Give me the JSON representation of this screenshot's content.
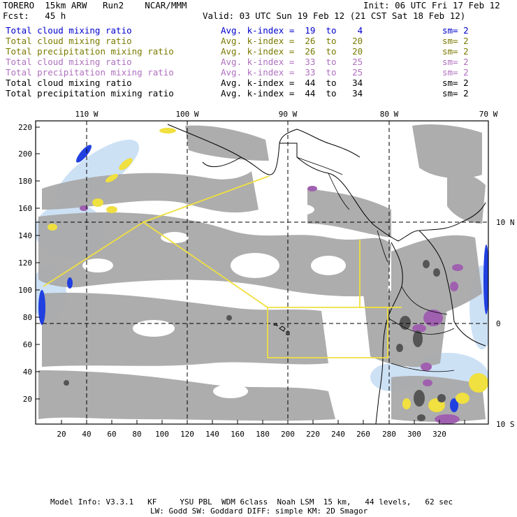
{
  "header": {
    "model": "TORERO  15km ARW   Run2    NCAR/MMM",
    "init": "Init: 06 UTC Fri 17 Feb 12",
    "fcst": "Fcst:   45 h",
    "valid": "Valid: 03 UTC Sun 19 Feb 12 (21 CST Sat 18 Feb 12)"
  },
  "legend": [
    {
      "field": "Total cloud mixing ratio",
      "kindex": "Avg. k-index =  19  to    4",
      "sm": "sm= 2",
      "color": "#0000d0"
    },
    {
      "field": "Total cloud mixing ratio",
      "kindex": "Avg. k-index =  26  to   20",
      "sm": "sm= 2",
      "color": "#7a7a00"
    },
    {
      "field": "Total precipitation mixing ratio",
      "kindex": "Avg. k-index =  26  to   20",
      "sm": "sm= 2",
      "color": "#7a7a00"
    },
    {
      "field": "Total cloud mixing ratio",
      "kindex": "Avg. k-index =  33  to   25",
      "sm": "sm= 2",
      "color": "#b070c0"
    },
    {
      "field": "Total precipitation mixing ratio",
      "kindex": "Avg. k-index =  33  to   25",
      "sm": "sm= 2",
      "color": "#b070c0"
    },
    {
      "field": "Total cloud mixing ratio",
      "kindex": "Avg. k-index =  44  to   34",
      "sm": "sm= 2",
      "color": "#000000"
    },
    {
      "field": "Total precipitation mixing ratio",
      "kindex": "Avg. k-index =  44  to   34",
      "sm": "sm= 2",
      "color": "#000000"
    }
  ],
  "axes": {
    "top_lon": [
      "110 W",
      "100 W",
      "90 W",
      "80 W",
      "70 W"
    ],
    "right_lat": [
      "10 N",
      "0",
      "10 S"
    ],
    "left_y": [
      "220",
      "200",
      "180",
      "160",
      "140",
      "120",
      "100",
      "80",
      "60",
      "40",
      "20"
    ],
    "bottom_x": [
      "20",
      "40",
      "60",
      "80",
      "100",
      "120",
      "140",
      "160",
      "180",
      "200",
      "220",
      "240",
      "260",
      "280",
      "300",
      "320"
    ]
  },
  "footer": {
    "line1": "Model Info: V3.3.1   KF     YSU PBL  WDM 6class  Noah LSM  15 km,   44 levels,   62 sec",
    "line2": "LW: Godd SW: Goddard DIFF: simple KM: 2D Smagor"
  },
  "colors": {
    "cloud_gray": "#a9a9a9",
    "dark_gray": "#555555",
    "light_blue": "#c4dcf4",
    "blue": "#2040e0",
    "yellow": "#f0e040",
    "purple": "#a060b0",
    "domain_line": "#f0e040"
  }
}
